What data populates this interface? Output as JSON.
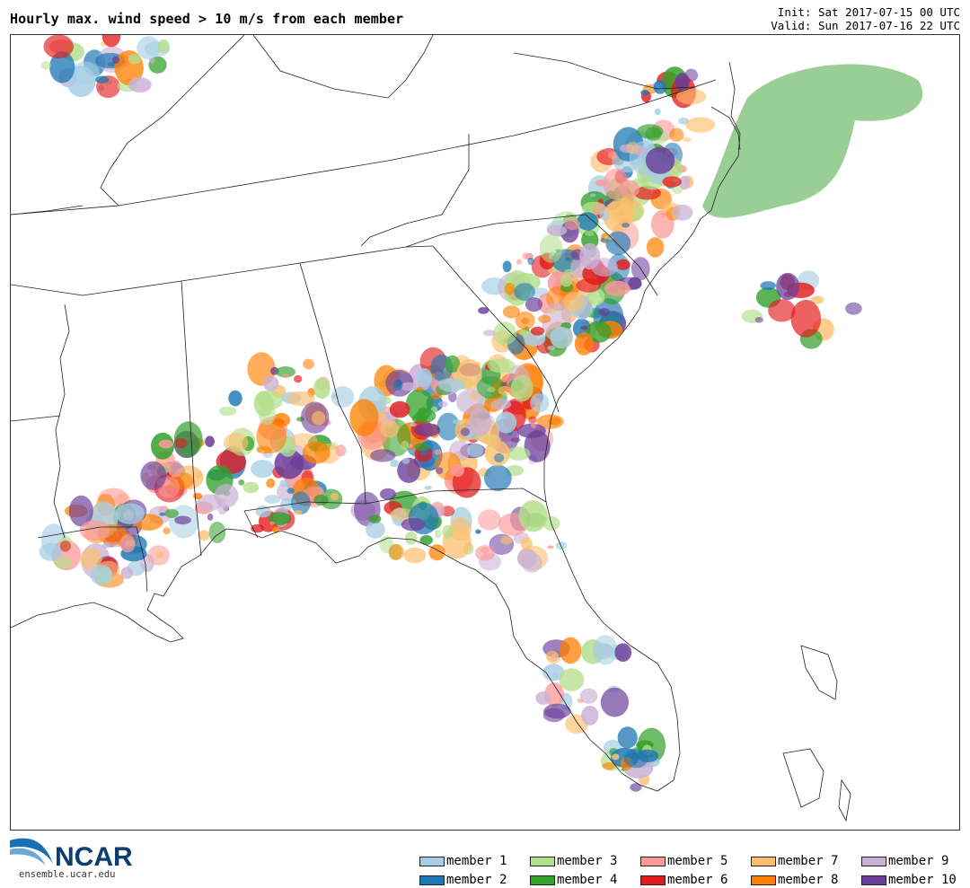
{
  "header": {
    "title": "Hourly max. wind speed > 10 m/s from each member",
    "init": "Init: Sat 2017-07-15 00 UTC",
    "valid": "Valid: Sun 2017-07-16 22 UTC"
  },
  "logo": {
    "text": "NCAR",
    "url": "ensemble.ucar.edu",
    "icon": "ncar-swoosh-icon"
  },
  "legend": {
    "items": [
      {
        "label": "member 1",
        "color": "#a6cee3"
      },
      {
        "label": "member 2",
        "color": "#1f78b4"
      },
      {
        "label": "member 3",
        "color": "#b2df8a"
      },
      {
        "label": "member 4",
        "color": "#33a02c"
      },
      {
        "label": "member 5",
        "color": "#fb9a99"
      },
      {
        "label": "member 6",
        "color": "#e31a1c"
      },
      {
        "label": "member 7",
        "color": "#fdbf6f"
      },
      {
        "label": "member 8",
        "color": "#ff7f00"
      },
      {
        "label": "member 9",
        "color": "#cab2d6"
      },
      {
        "label": "member 10",
        "color": "#6a3d9a"
      }
    ]
  },
  "map": {
    "region": "Southeastern United States",
    "background": "#ffffff",
    "boundary_color": "#222222"
  }
}
